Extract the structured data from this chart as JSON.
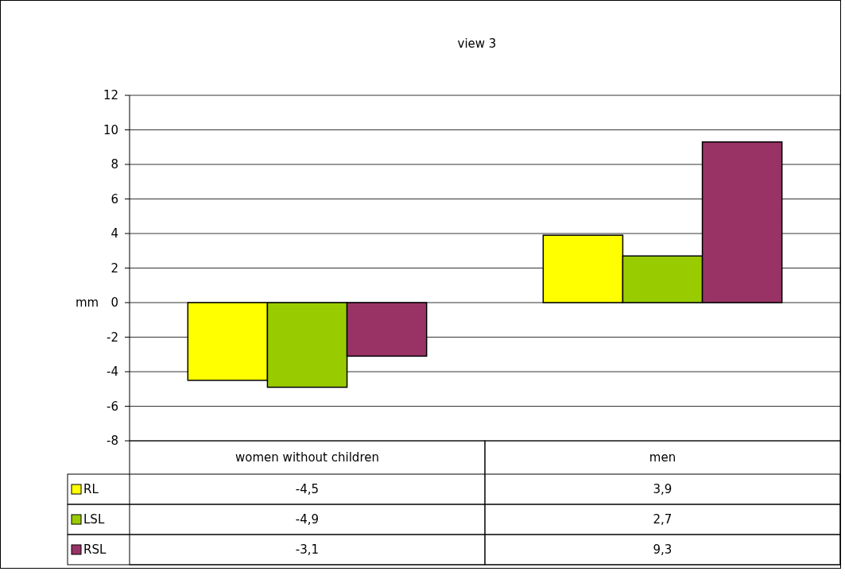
{
  "chart_data": {
    "type": "bar",
    "title": "view 3",
    "ylabel": "mm",
    "categories": [
      "women without children",
      "men"
    ],
    "series": [
      {
        "name": "RL",
        "color": "#ffff00",
        "values": [
          -4.5,
          3.9
        ],
        "value_labels": [
          "-4,5",
          "3,9"
        ]
      },
      {
        "name": "LSL",
        "color": "#99cc00",
        "values": [
          -4.9,
          2.7
        ],
        "value_labels": [
          "-4,9",
          "2,7"
        ]
      },
      {
        "name": "RSL",
        "color": "#993366",
        "values": [
          -3.1,
          9.3
        ],
        "value_labels": [
          "-3,1",
          "9,3"
        ]
      }
    ],
    "ylim": [
      -8,
      12
    ],
    "yticks": [
      -8,
      -6,
      -4,
      -2,
      0,
      2,
      4,
      6,
      8,
      10,
      12
    ],
    "grid": "y",
    "legend": "bottom"
  }
}
